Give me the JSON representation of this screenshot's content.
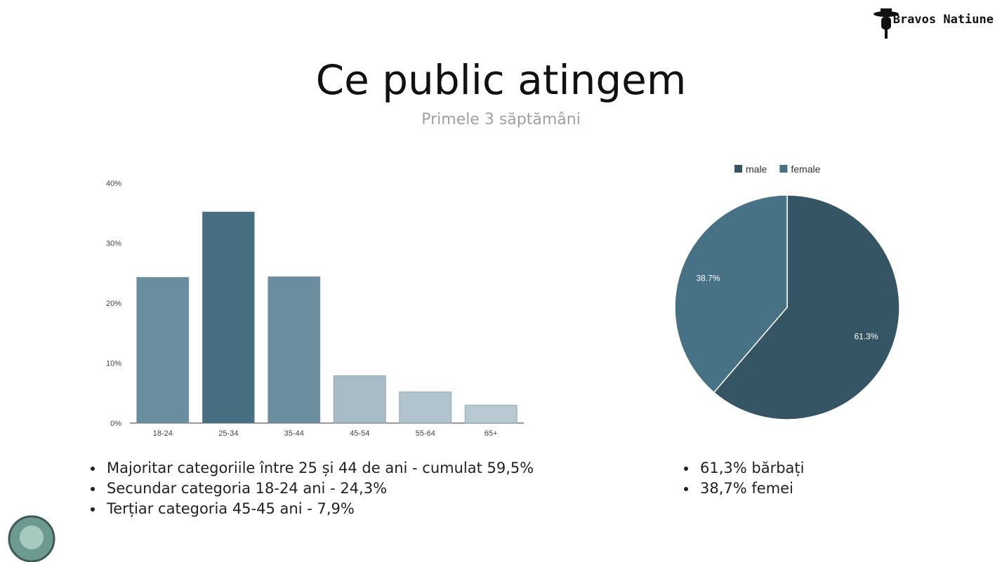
{
  "header": {
    "title": "Ce public atingem",
    "subtitle": "Primele 3 săptămâni",
    "logo": "Bravos Natiune"
  },
  "chart_data": [
    {
      "type": "bar",
      "categories": [
        "18-24",
        "25-34",
        "35-44",
        "45-54",
        "55-64",
        "65+"
      ],
      "values": [
        24.3,
        35.2,
        24.4,
        7.9,
        5.2,
        3.0
      ],
      "colors": [
        "#6b8e9e",
        "#476f82",
        "#6b8e9e",
        "#a7bcc7",
        "#b1c4cd",
        "#b7cad1"
      ],
      "ylim": [
        0,
        40
      ],
      "yticks": [
        {
          "value": 0,
          "label": "0%"
        },
        {
          "value": 10,
          "label": "10%"
        },
        {
          "value": 20,
          "label": "20%"
        },
        {
          "value": 30,
          "label": "30%"
        },
        {
          "value": 40,
          "label": "40%"
        }
      ]
    },
    {
      "type": "pie",
      "categories": [
        "male",
        "female"
      ],
      "values": [
        61.3,
        38.7
      ],
      "value_labels": [
        "61.3%",
        "38.7%"
      ],
      "colors": [
        "#355565",
        "#477285"
      ],
      "legend": "top"
    }
  ],
  "notes": {
    "left": [
      "Majoritar categoriile între 25 și 44 de ani - cumulat 59,5%",
      "Secundar categoria 18-24 ani - 24,3%",
      "Terțiar categoria 45-45 ani - 7,9%"
    ],
    "right": [
      "61,3% bărbați",
      "38,7% femei"
    ]
  }
}
